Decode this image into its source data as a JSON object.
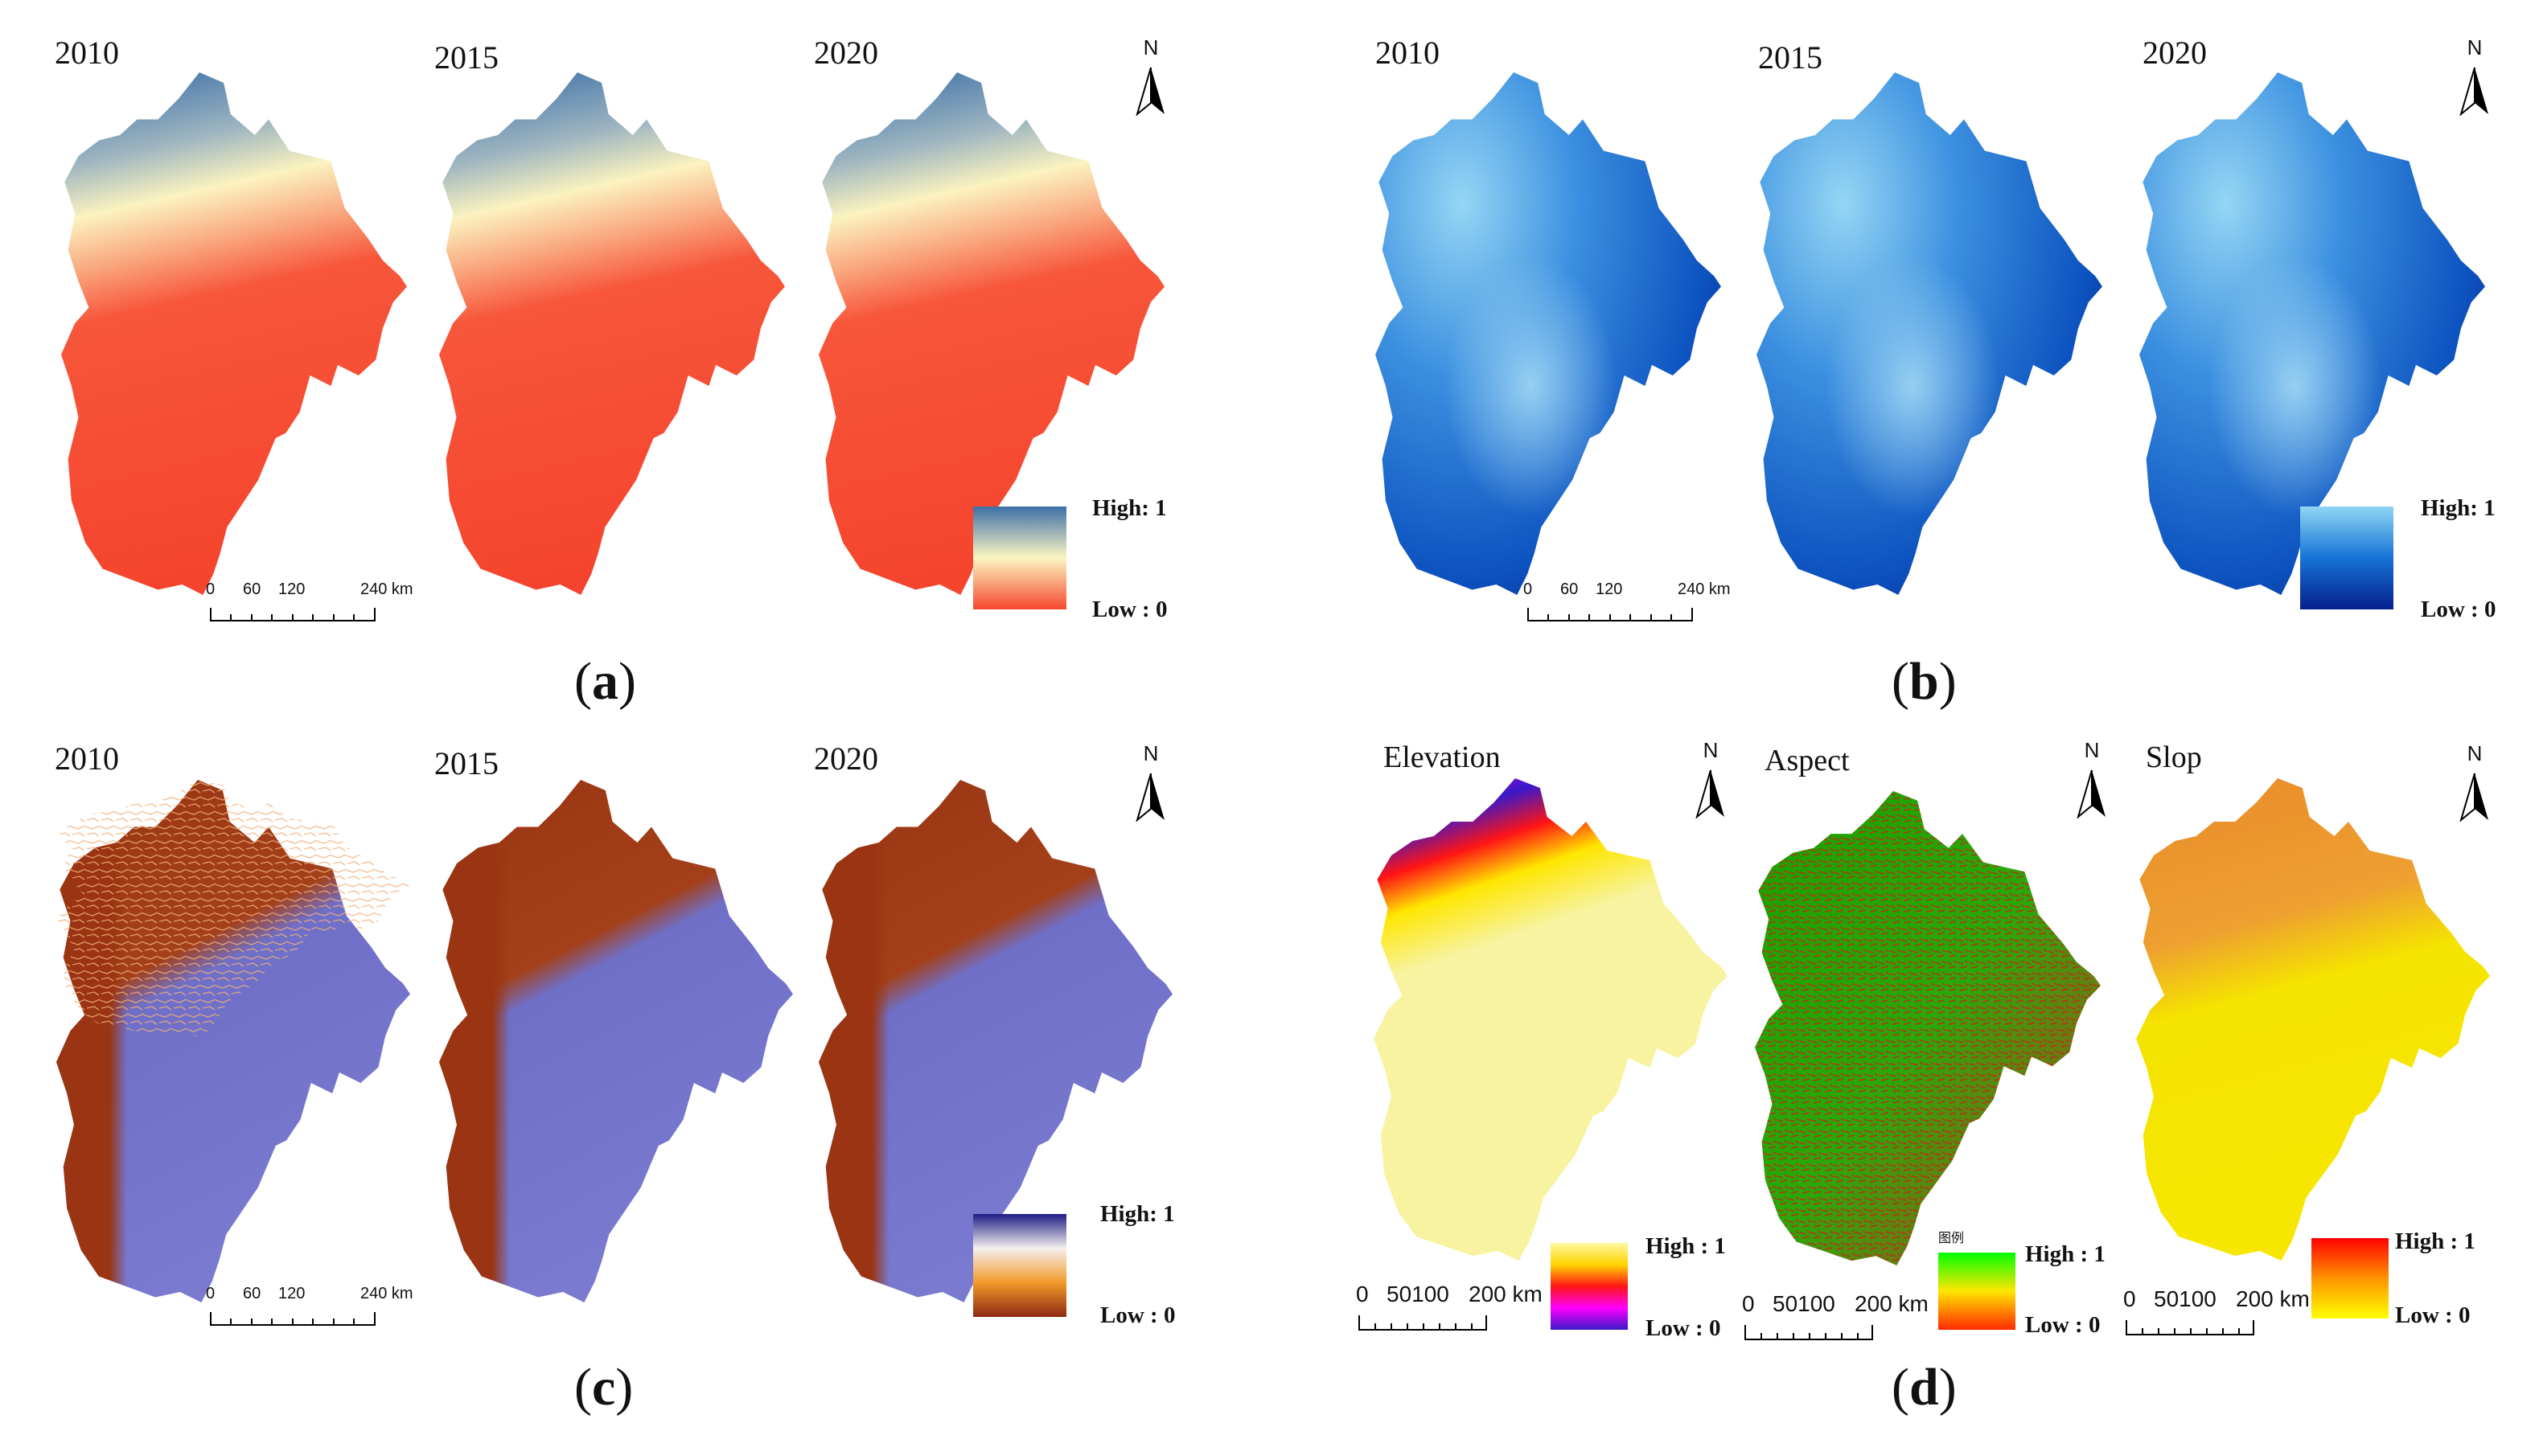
{
  "panels": {
    "a": {
      "caption_letter": "a",
      "years": [
        "2010",
        "2015",
        "2020"
      ],
      "legend": {
        "high": "High: 1",
        "low": "Low : 0",
        "colors": [
          "#3d6fa8",
          "#fbf6c2",
          "#f7482f"
        ]
      },
      "scale": [
        "0",
        "60",
        "120",
        "240 km"
      ]
    },
    "b": {
      "caption_letter": "b",
      "years": [
        "2010",
        "2015",
        "2020"
      ],
      "legend": {
        "high": "High: 1",
        "low": "Low : 0",
        "colors": [
          "#8fd6f4",
          "#1673d6",
          "#06208c"
        ]
      },
      "scale": [
        "0",
        "60",
        "120",
        "240 km"
      ]
    },
    "c": {
      "caption_letter": "c",
      "years": [
        "2010",
        "2015",
        "2020"
      ],
      "legend": {
        "high": "High: 1",
        "low": "Low : 0",
        "colors": [
          "#1d1d86",
          "#f5f0ee",
          "#f39a2a",
          "#8c2a12"
        ]
      },
      "scale": [
        "0",
        "60",
        "120",
        "240 km"
      ]
    },
    "d": {
      "caption_letter": "d",
      "maps": [
        {
          "title": "Elevation",
          "legend": {
            "high": "High : 1",
            "low": "Low : 0",
            "colors": [
              "#fff8a0",
              "#ff1414",
              "#ff00ff",
              "#3a18c8"
            ]
          },
          "scale": [
            "0",
            "50100",
            "200 km"
          ]
        },
        {
          "title": "Aspect",
          "legend_title": "图例",
          "legend": {
            "high": "High : 1",
            "low": "Low : 0",
            "colors": [
              "#00ff00",
              "#ff2a00"
            ]
          },
          "scale": [
            "0",
            "50100",
            "200 km"
          ]
        },
        {
          "title": "Slop",
          "legend": {
            "high": "High : 1",
            "low": "Low : 0",
            "colors": [
              "#ff0000",
              "#ffff00"
            ]
          },
          "scale": [
            "0",
            "50100",
            "200 km"
          ]
        }
      ]
    }
  },
  "north_label": "N",
  "map_colors": {
    "a_fill": [
      "#3a6da8",
      "#fbf3c0",
      "#f7492f"
    ],
    "b_fill": [
      "#8cd2f2",
      "#1a6fd4",
      "#041b80"
    ],
    "c_fill": [
      "#9a3412",
      "#6f6fc8"
    ],
    "d_elev": [
      "#ff00ff",
      "#f7f3a0"
    ],
    "d_aspect": [
      "#1fa000",
      "#d42a10"
    ],
    "d_slope": [
      "#f5e000",
      "#e8822a"
    ]
  }
}
